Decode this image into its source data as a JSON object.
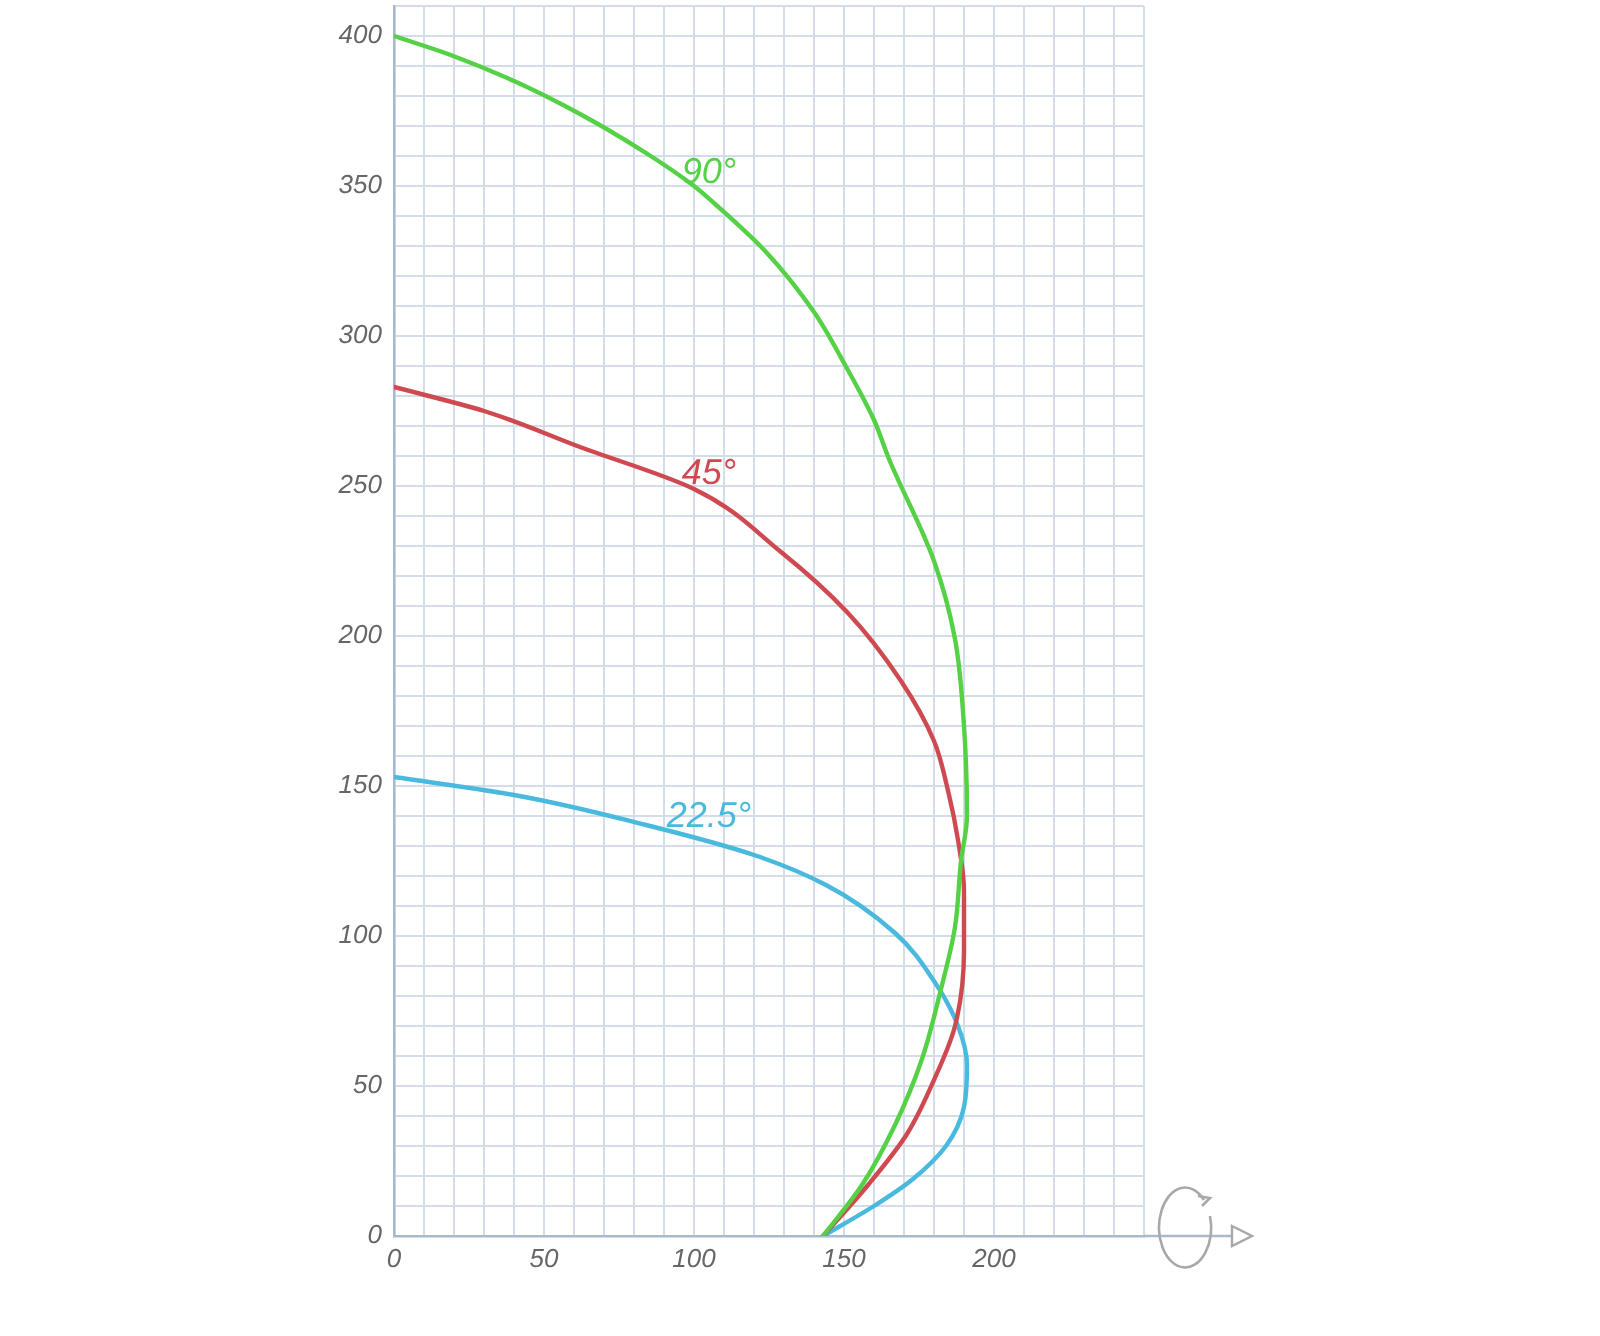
{
  "chart_data": {
    "type": "line",
    "series": [
      {
        "name": "90°",
        "color": "#55d145",
        "type": "line",
        "x": [
          0,
          18,
          40,
          62,
          84,
          100,
          107,
          124,
          140,
          150,
          160,
          165,
          180,
          187,
          190,
          191,
          189,
          187,
          182,
          176,
          167,
          156,
          143
        ],
        "values": [
          400,
          394,
          385,
          374,
          361,
          350,
          344,
          328,
          308,
          291,
          272,
          259,
          225,
          199,
          170,
          140,
          125,
          103,
          81,
          59,
          37,
          17,
          0
        ]
      },
      {
        "name": "45°",
        "color": "#cf4a50",
        "type": "line",
        "x": [
          0,
          30,
          62,
          100,
          129,
          151,
          169,
          180,
          185,
          188,
          190,
          190,
          187,
          180,
          171,
          158,
          143
        ],
        "values": [
          283,
          275,
          263,
          249,
          228,
          208,
          185,
          165,
          147,
          132,
          115,
          95,
          70,
          52,
          34,
          17,
          0
        ]
      },
      {
        "name": "22.5°",
        "color": "#49b9de",
        "type": "line",
        "x": [
          0,
          40,
          84,
          120,
          144,
          167,
          180,
          188,
          191,
          190,
          184,
          173,
          160,
          143
        ],
        "values": [
          153,
          147,
          137,
          127,
          117,
          101,
          85,
          70,
          57,
          43,
          30,
          19,
          10,
          0
        ]
      }
    ],
    "xlim": [
      0,
      250
    ],
    "ylim": [
      0,
      410
    ],
    "xticks": [
      0,
      {
        "value": 10,
        "label": null
      },
      {
        "value": 20,
        "label": null
      },
      {
        "value": 30,
        "label": null
      },
      {
        "value": 40,
        "label": null
      },
      50,
      {
        "value": 60,
        "label": null
      },
      {
        "value": 70,
        "label": null
      },
      {
        "value": 80,
        "label": null
      },
      {
        "value": 90,
        "label": null
      },
      100,
      {
        "value": 110,
        "label": null
      },
      {
        "value": 120,
        "label": null
      },
      {
        "value": 130,
        "label": null
      },
      {
        "value": 140,
        "label": null
      },
      150,
      {
        "value": 160,
        "label": null
      },
      {
        "value": 170,
        "label": null
      },
      {
        "value": 180,
        "label": null
      },
      {
        "value": 190,
        "label": null
      },
      200,
      {
        "value": 210,
        "label": null
      },
      {
        "value": 220,
        "label": null
      },
      {
        "value": 230,
        "label": null
      },
      {
        "value": 240,
        "label": null
      },
      {
        "value": 250,
        "label": null
      }
    ],
    "yticks": [
      0,
      {
        "value": 10,
        "label": null
      },
      {
        "value": 20,
        "label": null
      },
      {
        "value": 30,
        "label": null
      },
      {
        "value": 40,
        "label": null
      },
      50,
      {
        "value": 60,
        "label": null
      },
      {
        "value": 70,
        "label": null
      },
      {
        "value": 80,
        "label": null
      },
      {
        "value": 90,
        "label": null
      },
      100,
      {
        "value": 110,
        "label": null
      },
      {
        "value": 120,
        "label": null
      },
      {
        "value": 130,
        "label": null
      },
      {
        "value": 140,
        "label": null
      },
      150,
      {
        "value": 160,
        "label": null
      },
      {
        "value": 170,
        "label": null
      },
      {
        "value": 180,
        "label": null
      },
      {
        "value": 190,
        "label": null
      },
      200,
      {
        "value": 210,
        "label": null
      },
      {
        "value": 220,
        "label": null
      },
      {
        "value": 230,
        "label": null
      },
      {
        "value": 240,
        "label": null
      },
      250,
      {
        "value": 260,
        "label": null
      },
      {
        "value": 270,
        "label": null
      },
      {
        "value": 280,
        "label": null
      },
      {
        "value": 290,
        "label": null
      },
      300,
      {
        "value": 310,
        "label": null
      },
      {
        "value": 320,
        "label": null
      },
      {
        "value": 330,
        "label": null
      },
      {
        "value": 340,
        "label": null
      },
      350,
      {
        "value": 360,
        "label": null
      },
      {
        "value": 370,
        "label": null
      },
      {
        "value": 380,
        "label": null
      },
      {
        "value": 390,
        "label": null
      },
      400,
      {
        "value": 410,
        "label": null
      }
    ],
    "grid": true
  }
}
